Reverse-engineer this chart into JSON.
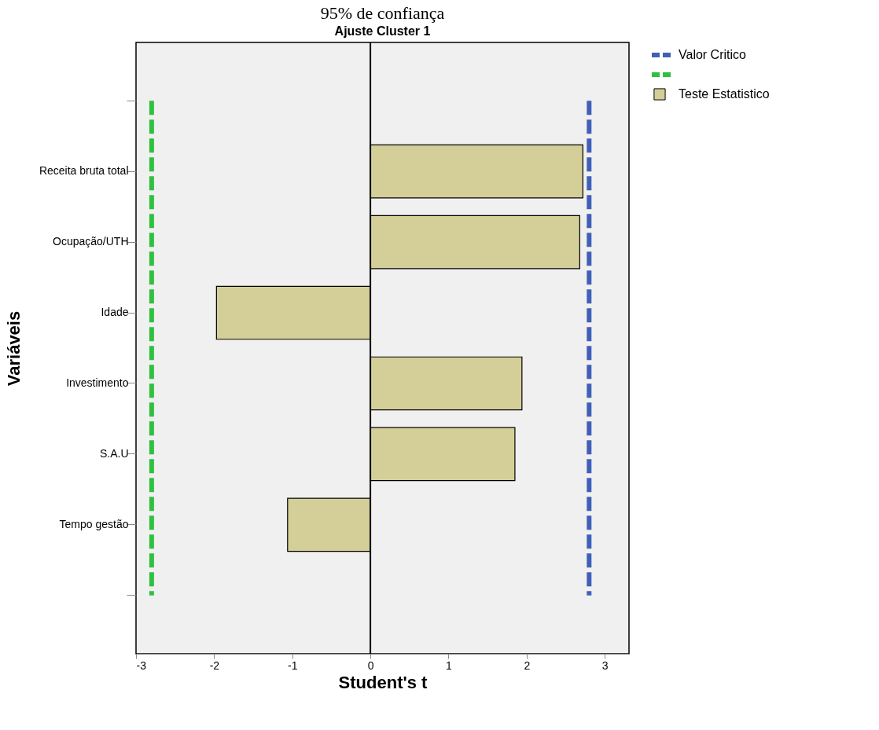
{
  "chart_data": {
    "type": "bar",
    "orientation": "horizontal",
    "title": "95% de confiança",
    "subtitle": "Ajuste Cluster 1",
    "xlabel": "Student's t",
    "ylabel": "Variáveis",
    "categories": [
      null,
      "Receita bruta total",
      "Ocupação/UTH",
      "Idade",
      "Investimento",
      "S.A.U",
      "Tempo gestão",
      null
    ],
    "series": [
      {
        "name": "Teste Estatistico",
        "color": "#d4cf98",
        "values": [
          null,
          2.72,
          2.68,
          -1.97,
          1.94,
          1.85,
          -1.06,
          null
        ]
      }
    ],
    "xlim": [
      -3,
      3.31
    ],
    "xticks": [
      -3,
      -2,
      -1,
      0,
      1,
      2,
      3
    ],
    "grid": false,
    "legend": "top right",
    "ref_lines": [
      {
        "axis": "x",
        "value": 2.8,
        "label": "Valor Critico",
        "color": "#4060b8",
        "line_style": "dashed"
      },
      {
        "axis": "x",
        "value": -2.8,
        "color": "#30c040",
        "line_style": "dashed"
      },
      {
        "axis": "x",
        "value": 0,
        "color": "#000000",
        "line_style": "solid"
      }
    ]
  }
}
